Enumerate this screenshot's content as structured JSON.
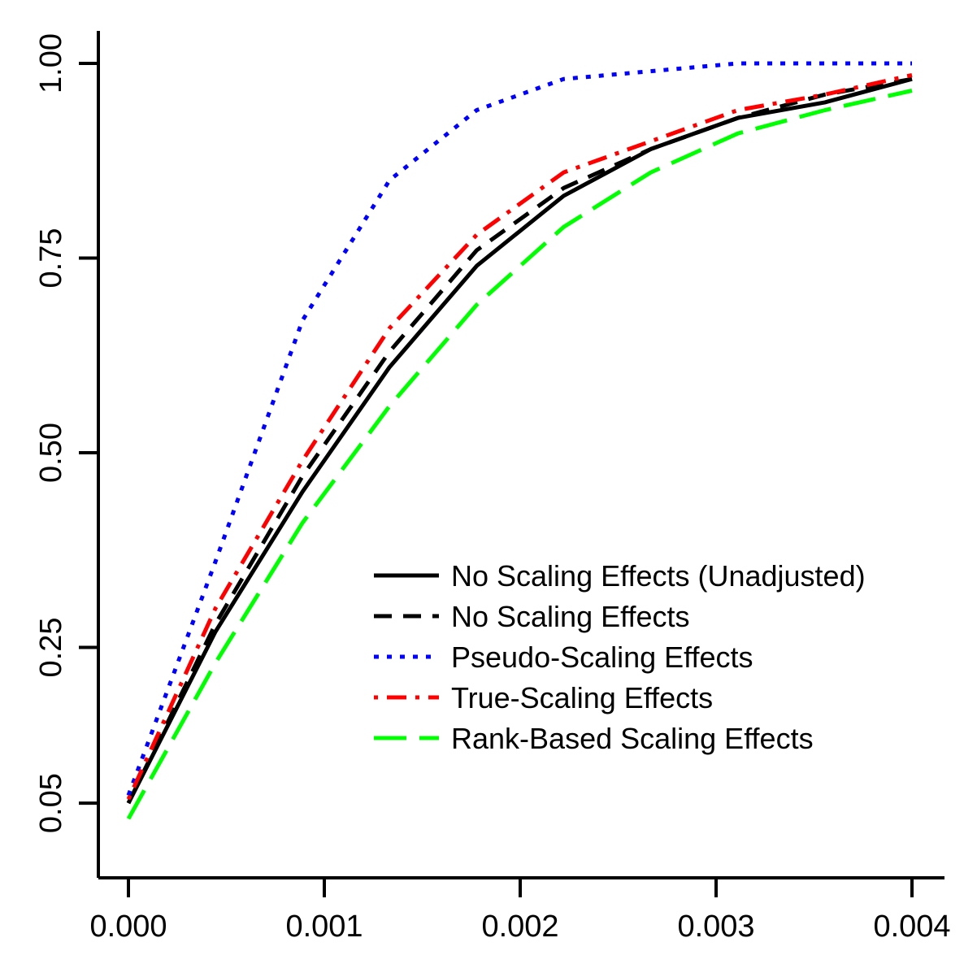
{
  "chart_data": {
    "type": "line",
    "title": "",
    "xlabel": "",
    "ylabel": "",
    "xlim": [
      0.0,
      0.004
    ],
    "ylim": [
      0.0,
      1.0
    ],
    "x_ticks": [
      {
        "value": 0.0,
        "label": "0.000"
      },
      {
        "value": 0.001,
        "label": "0.001"
      },
      {
        "value": 0.002,
        "label": "0.002"
      },
      {
        "value": 0.003,
        "label": "0.003"
      },
      {
        "value": 0.004,
        "label": "0.004"
      }
    ],
    "y_ticks": [
      {
        "value": 0.05,
        "label": "0.05"
      },
      {
        "value": 0.25,
        "label": "0.25"
      },
      {
        "value": 0.5,
        "label": "0.50"
      },
      {
        "value": 0.75,
        "label": "0.75"
      },
      {
        "value": 1.0,
        "label": "1.00"
      }
    ],
    "x": [
      0.0,
      0.000444,
      0.000889,
      0.001333,
      0.001778,
      0.002222,
      0.002667,
      0.003111,
      0.003556,
      0.004
    ],
    "series": [
      {
        "name": "No Scaling Effects (Unadjusted)",
        "color": "#000000",
        "dash": "solid",
        "values": [
          0.05,
          0.27,
          0.45,
          0.61,
          0.74,
          0.83,
          0.89,
          0.93,
          0.95,
          0.98
        ]
      },
      {
        "name": "No Scaling Effects",
        "color": "#000000",
        "dash": "dashed",
        "values": [
          0.05,
          0.28,
          0.47,
          0.63,
          0.76,
          0.84,
          0.89,
          0.93,
          0.96,
          0.98
        ]
      },
      {
        "name": "Pseudo-Scaling Effects",
        "color": "#0000ff",
        "dash": "dotted",
        "values": [
          0.06,
          0.36,
          0.67,
          0.85,
          0.94,
          0.98,
          0.99,
          1.0,
          1.0,
          1.0
        ]
      },
      {
        "name": "True-Scaling Effects",
        "color": "#ff0000",
        "dash": "dotdash",
        "values": [
          0.055,
          0.3,
          0.49,
          0.66,
          0.78,
          0.86,
          0.9,
          0.94,
          0.96,
          0.985
        ]
      },
      {
        "name": "Rank-Based Scaling Effects",
        "color": "#00ff00",
        "dash": "longdash",
        "values": [
          0.03,
          0.23,
          0.41,
          0.56,
          0.69,
          0.79,
          0.86,
          0.91,
          0.94,
          0.965
        ]
      }
    ],
    "grid": false,
    "legend_position": "bottom-right"
  }
}
